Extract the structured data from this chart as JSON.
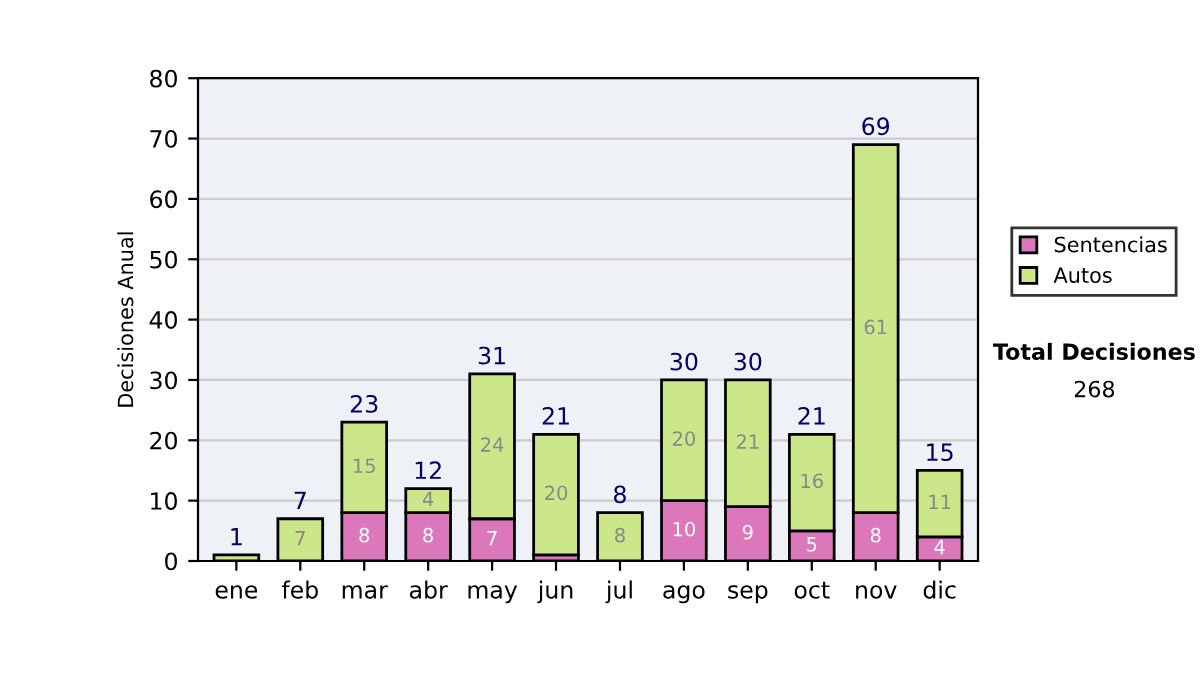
{
  "chart_data": {
    "type": "bar",
    "stacked": true,
    "ylabel": "Decisiones Anual",
    "categories": [
      "ene",
      "feb",
      "mar",
      "abr",
      "may",
      "jun",
      "jul",
      "ago",
      "sep",
      "oct",
      "nov",
      "dic"
    ],
    "series": [
      {
        "name": "Sentencias",
        "color": "#dd77bb",
        "values": [
          0,
          0,
          8,
          8,
          7,
          1,
          0,
          10,
          9,
          5,
          8,
          4
        ],
        "value_labels": [
          null,
          null,
          "8",
          "8",
          "7",
          null,
          null,
          "10",
          "9",
          "5",
          "8",
          "4"
        ]
      },
      {
        "name": "Autos",
        "color": "#cce68a",
        "values": [
          1,
          7,
          15,
          4,
          24,
          20,
          8,
          20,
          21,
          16,
          61,
          11
        ],
        "value_labels": [
          null,
          "7",
          "15",
          "4",
          "24",
          "20",
          "8",
          "20",
          "21",
          "16",
          "61",
          "11"
        ]
      }
    ],
    "totals": [
      "1",
      "7",
      "23",
      "12",
      "31",
      "21",
      "8",
      "30",
      "30",
      "21",
      "69",
      "15"
    ],
    "ylim": [
      0,
      80
    ],
    "yticks": [
      0,
      10,
      20,
      30,
      40,
      50,
      60,
      70,
      80
    ],
    "grid": "y",
    "legend": "right",
    "annotations": [
      "Total Decisiones",
      "268"
    ]
  }
}
